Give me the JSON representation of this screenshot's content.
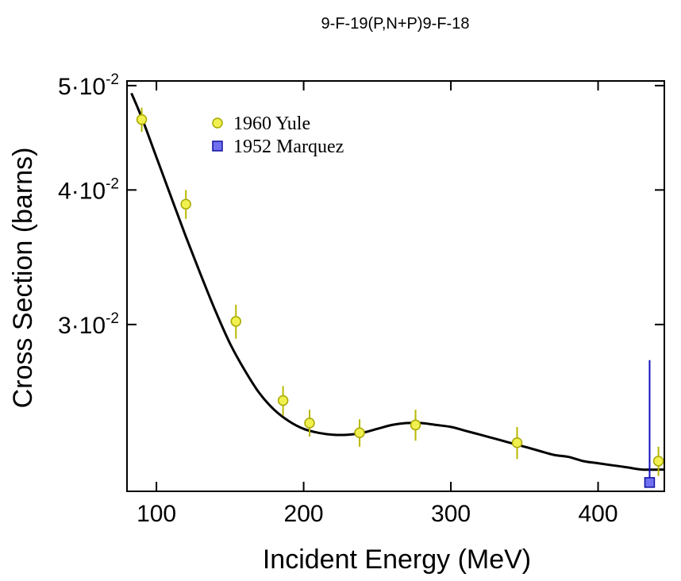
{
  "chart_data": {
    "type": "scatter",
    "title": "9-F-19(P,N+P)9-F-18",
    "xlabel": "Incident Energy (MeV)",
    "ylabel": "Cross Section (barns)",
    "xlim": [
      80,
      445
    ],
    "ylim": [
      0.021,
      0.0505
    ],
    "yscale": "log",
    "x_ticks": [
      100,
      200,
      300,
      400
    ],
    "y_ticks": [
      {
        "value": 0.03,
        "mantissa": "3·10",
        "exponent": "-2"
      },
      {
        "value": 0.04,
        "mantissa": "4·10",
        "exponent": "-2"
      },
      {
        "value": 0.05,
        "mantissa": "5·10",
        "exponent": "-2"
      }
    ],
    "legend_position": "top-left",
    "series": [
      {
        "name": "1960 Yule",
        "marker": "circle",
        "color": "#f0f050",
        "edge_color": "#a8a800",
        "points": [
          {
            "x": 90,
            "y": 0.0465,
            "err": 0.0012
          },
          {
            "x": 120,
            "y": 0.0388,
            "err": 0.0012
          },
          {
            "x": 154,
            "y": 0.0302,
            "err": 0.0011
          },
          {
            "x": 186,
            "y": 0.0255,
            "err": 0.0008
          },
          {
            "x": 204,
            "y": 0.0243,
            "err": 0.0007
          },
          {
            "x": 238,
            "y": 0.0238,
            "err": 0.0007
          },
          {
            "x": 276,
            "y": 0.0242,
            "err": 0.0008
          },
          {
            "x": 345,
            "y": 0.0233,
            "err": 0.0008
          },
          {
            "x": 441,
            "y": 0.0224,
            "err": 0.0007
          }
        ]
      },
      {
        "name": "1952 Marquez",
        "marker": "square",
        "color": "#7070f0",
        "edge_color": "#1010a0",
        "points": [
          {
            "x": 435,
            "y": 0.0214,
            "err_up": 0.0064,
            "err_down": 0.0
          }
        ]
      }
    ],
    "fit_curve": {
      "color": "#000000",
      "x": [
        83,
        90,
        100,
        110,
        120,
        130,
        140,
        150,
        160,
        170,
        180,
        190,
        200,
        210,
        220,
        230,
        240,
        250,
        260,
        270,
        280,
        290,
        300,
        310,
        320,
        330,
        340,
        350,
        360,
        370,
        380,
        390,
        400,
        410,
        420,
        430,
        445
      ],
      "y": [
        0.0492,
        0.0467,
        0.0429,
        0.0394,
        0.0362,
        0.0334,
        0.0309,
        0.0288,
        0.0272,
        0.0259,
        0.025,
        0.0244,
        0.024,
        0.0238,
        0.0237,
        0.0237,
        0.0238,
        0.024,
        0.0242,
        0.0243,
        0.0243,
        0.0242,
        0.0241,
        0.0239,
        0.0237,
        0.0235,
        0.0233,
        0.0231,
        0.0229,
        0.0227,
        0.0226,
        0.0224,
        0.0223,
        0.0222,
        0.0221,
        0.022,
        0.022
      ]
    }
  }
}
